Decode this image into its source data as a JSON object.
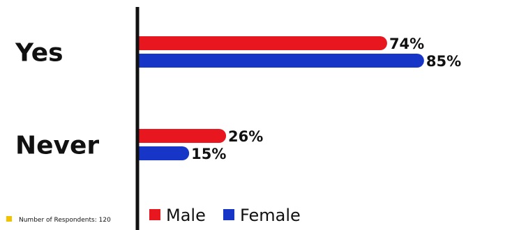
{
  "chart_data": {
    "type": "bar",
    "orientation": "horizontal",
    "categories": [
      "Yes",
      "Never"
    ],
    "series": [
      {
        "name": "Male",
        "color": "#e8171f",
        "values": [
          74,
          26
        ],
        "labels": [
          "74%",
          "26%"
        ]
      },
      {
        "name": "Female",
        "color": "#1736c8",
        "values": [
          85,
          15
        ],
        "labels": [
          "85%",
          "15%"
        ]
      }
    ],
    "xlim": [
      0,
      100
    ],
    "grid": false,
    "legend": "bottom"
  },
  "note": {
    "text": "Number of Respondents: 120",
    "marker_color": "#f2c200"
  }
}
